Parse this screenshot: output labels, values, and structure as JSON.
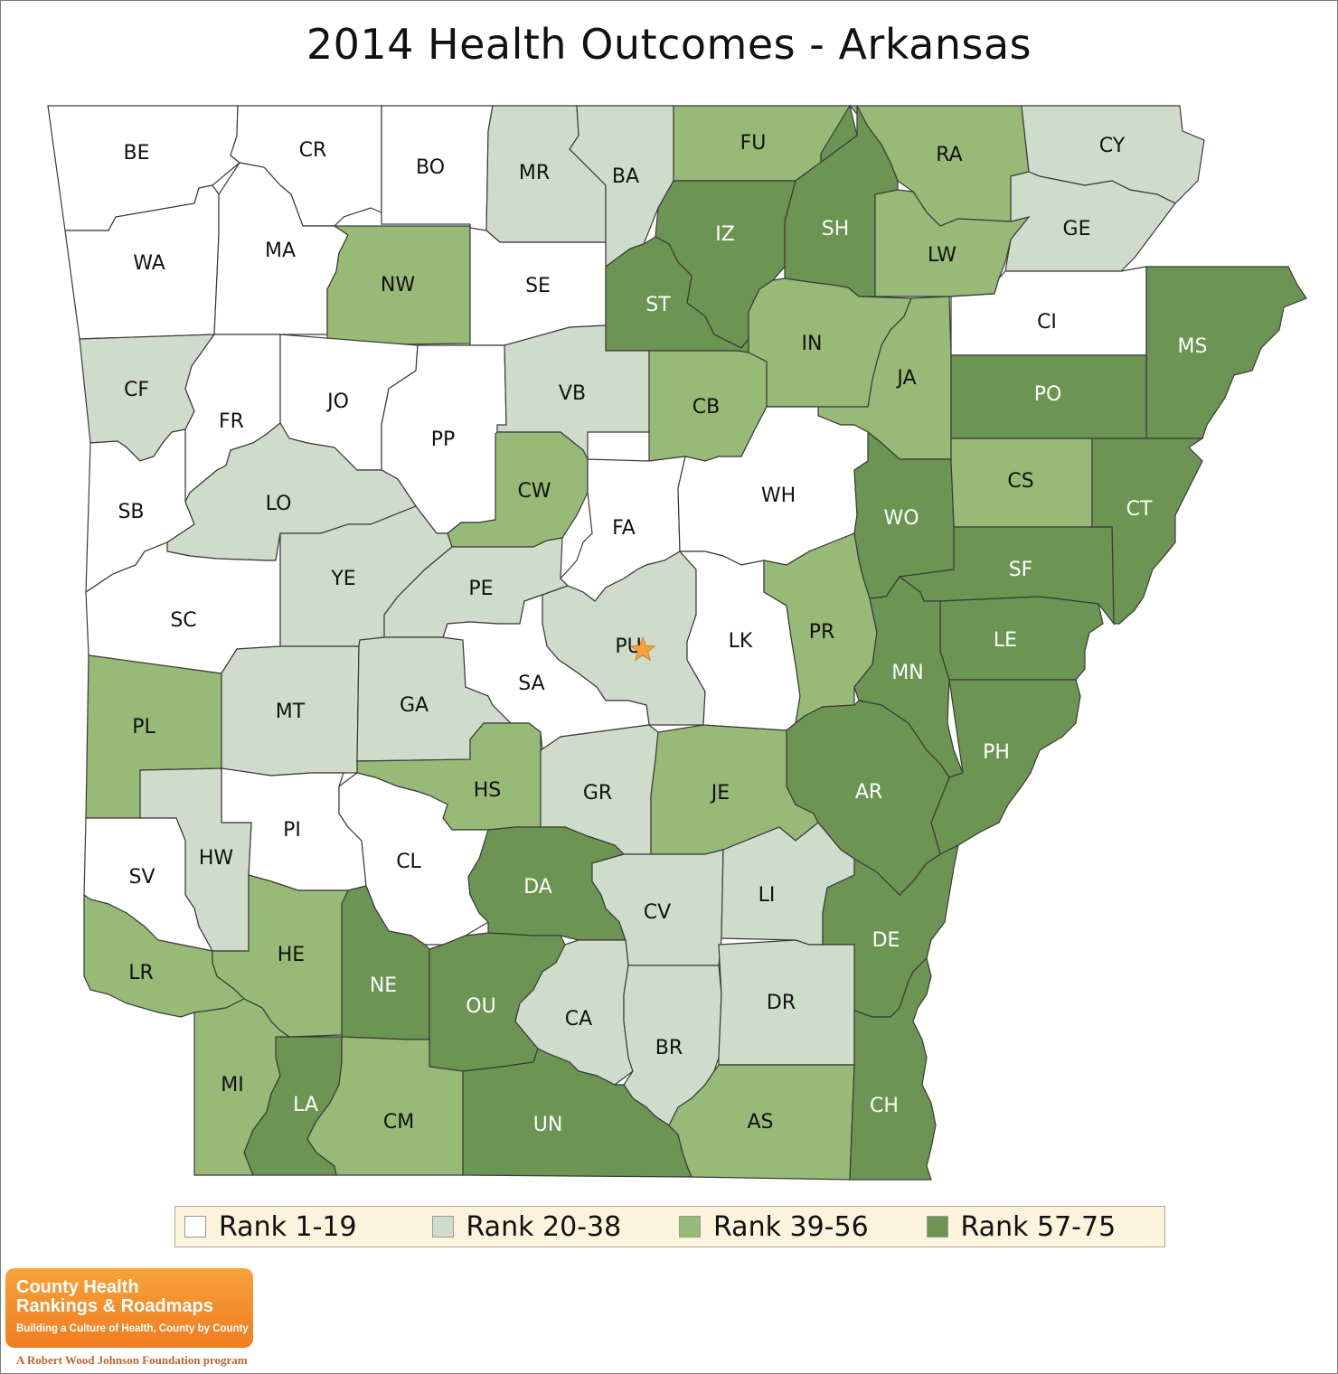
{
  "title": "2014 Health Outcomes - Arkansas",
  "colors": {
    "rank_1_19": "#ffffff",
    "rank_20_38": "#d0dccb",
    "rank_39_56": "#97ba77",
    "rank_57_75": "#6c9452",
    "star": "#f5a33a"
  },
  "legend": [
    {
      "label": "Rank 1-19",
      "band": "rank_1_19"
    },
    {
      "label": "Rank 20-38",
      "band": "rank_20_38"
    },
    {
      "label": "Rank 39-56",
      "band": "rank_39_56"
    },
    {
      "label": "Rank 57-75",
      "band": "rank_57_75"
    }
  ],
  "counties": {
    "BE": "rank_1_19",
    "CR": "rank_1_19",
    "BO": "rank_1_19",
    "MR": "rank_20_38",
    "BA": "rank_20_38",
    "FU": "rank_39_56",
    "RA": "rank_39_56",
    "CY": "rank_20_38",
    "WA": "rank_1_19",
    "MA": "rank_1_19",
    "NW": "rank_39_56",
    "SE": "rank_1_19",
    "IZ": "rank_57_75",
    "SH": "rank_57_75",
    "LW": "rank_39_56",
    "GE": "rank_20_38",
    "ST": "rank_57_75",
    "CI": "rank_1_19",
    "MS": "rank_57_75",
    "CF": "rank_20_38",
    "FR": "rank_1_19",
    "JO": "rank_1_19",
    "PP": "rank_1_19",
    "VB": "rank_20_38",
    "CB": "rank_39_56",
    "IN": "rank_39_56",
    "JA": "rank_39_56",
    "PO": "rank_57_75",
    "SB": "rank_1_19",
    "LO": "rank_20_38",
    "CW": "rank_39_56",
    "FA": "rank_1_19",
    "WH": "rank_1_19",
    "WO": "rank_57_75",
    "CS": "rank_39_56",
    "CT": "rank_57_75",
    "SC": "rank_1_19",
    "YE": "rank_20_38",
    "PE": "rank_20_38",
    "SF": "rank_57_75",
    "PU": "rank_20_38",
    "LK": "rank_1_19",
    "PR": "rank_39_56",
    "LE": "rank_57_75",
    "MN": "rank_57_75",
    "PL": "rank_39_56",
    "MT": "rank_20_38",
    "GA": "rank_20_38",
    "SA": "rank_1_19",
    "PH": "rank_57_75",
    "HS": "rank_39_56",
    "GR": "rank_20_38",
    "JE": "rank_39_56",
    "AR": "rank_57_75",
    "PI": "rank_1_19",
    "HW": "rank_20_38",
    "SV": "rank_1_19",
    "CL": "rank_1_19",
    "DA": "rank_57_75",
    "CV": "rank_20_38",
    "LI": "rank_20_38",
    "DE": "rank_57_75",
    "LR": "rank_39_56",
    "HE": "rank_39_56",
    "NE": "rank_57_75",
    "OU": "rank_57_75",
    "CA": "rank_20_38",
    "BR": "rank_20_38",
    "DR": "rank_20_38",
    "MI": "rank_39_56",
    "LA": "rank_57_75",
    "CM": "rank_39_56",
    "UN": "rank_57_75",
    "AS": "rank_39_56",
    "CH": "rank_57_75"
  },
  "capital_marker": {
    "county": "PU",
    "icon": "star-icon"
  },
  "logo": {
    "line1": "County Health",
    "line2": "Rankings & Roadmaps",
    "tagline": "Building a Culture of Health, County by County",
    "footer": "A Robert Wood Johnson Foundation program"
  }
}
